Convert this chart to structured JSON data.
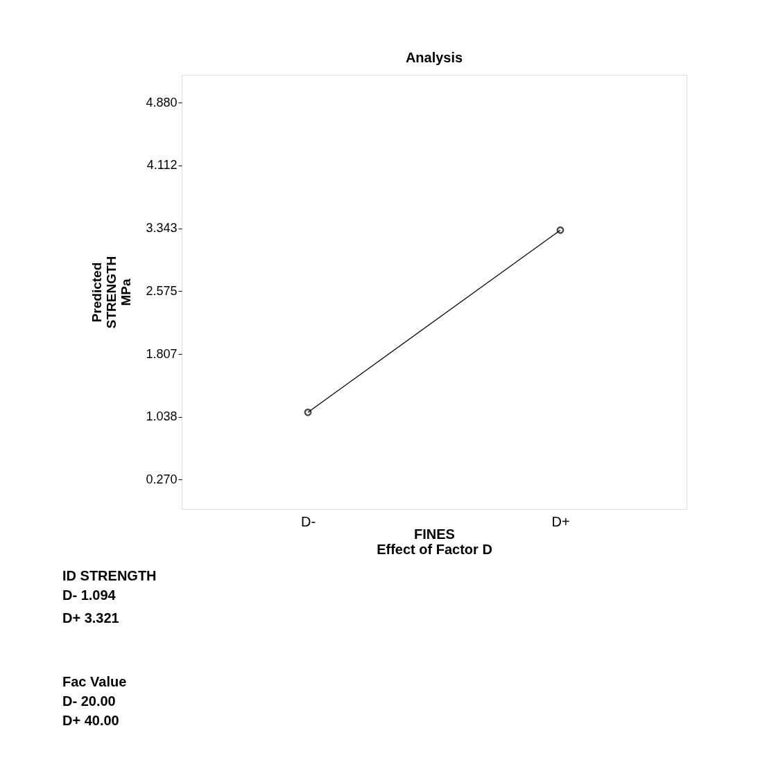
{
  "chart_data": {
    "type": "line",
    "title": "Analysis",
    "categories": [
      "D-",
      "D+"
    ],
    "series": [
      {
        "color": "#000000",
        "values": [
          1.094,
          3.321
        ]
      }
    ],
    "xlabel": "FINES\nEffect of Factor D",
    "ylabel": "Predicted\nSTRENGTH\nMPa",
    "ylim": [
      -0.09,
      5.22
    ],
    "yticks": [
      {
        "value": 0.27,
        "label": "0.270"
      },
      1.038,
      1.807,
      2.575,
      3.343,
      4.112,
      {
        "value": 4.88,
        "label": "4.880"
      }
    ],
    "marker": "circle",
    "line_style": "solid",
    "grid": false,
    "annotations": [
      "ID STRENGTH",
      "D- 1.094",
      "D+ 3.321",
      "Fac Value",
      "D- 20.00",
      "D+ 40.00"
    ]
  }
}
